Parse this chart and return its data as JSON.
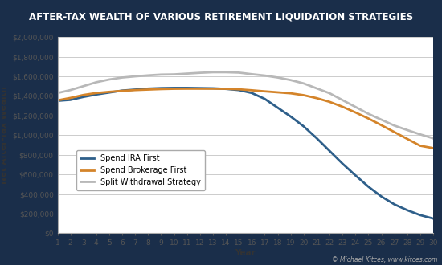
{
  "title": "AFTER-TAX WEALTH OF VARIOUS RETIREMENT LIQUIDATION STRATEGIES",
  "xlabel": "Year",
  "ylabel": "Net After-Tax Wealth",
  "copyright": "© Michael Kitces, www.kitces.com",
  "copyright_link": "www.kitces.com",
  "outer_bg_color": "#1a2e4a",
  "inner_bg_color": "#ffffff",
  "grid_color": "#cccccc",
  "title_color": "#ffffff",
  "years": [
    1,
    2,
    3,
    4,
    5,
    6,
    7,
    8,
    9,
    10,
    11,
    12,
    13,
    14,
    15,
    16,
    17,
    18,
    19,
    20,
    21,
    22,
    23,
    24,
    25,
    26,
    27,
    28,
    29,
    30
  ],
  "ira_first": [
    1350000,
    1360000,
    1390000,
    1415000,
    1435000,
    1455000,
    1465000,
    1475000,
    1480000,
    1482000,
    1482000,
    1480000,
    1478000,
    1472000,
    1460000,
    1430000,
    1370000,
    1280000,
    1190000,
    1090000,
    970000,
    840000,
    710000,
    590000,
    475000,
    375000,
    295000,
    235000,
    185000,
    150000
  ],
  "brokerage_first": [
    1355000,
    1380000,
    1410000,
    1430000,
    1442000,
    1452000,
    1460000,
    1465000,
    1470000,
    1473000,
    1474000,
    1474000,
    1474000,
    1473000,
    1468000,
    1458000,
    1447000,
    1437000,
    1427000,
    1408000,
    1378000,
    1340000,
    1290000,
    1232000,
    1170000,
    1102000,
    1032000,
    962000,
    892000,
    868000
  ],
  "split": [
    1430000,
    1460000,
    1500000,
    1540000,
    1568000,
    1588000,
    1600000,
    1610000,
    1618000,
    1620000,
    1628000,
    1636000,
    1642000,
    1642000,
    1638000,
    1622000,
    1608000,
    1588000,
    1562000,
    1528000,
    1478000,
    1428000,
    1358000,
    1288000,
    1218000,
    1158000,
    1098000,
    1052000,
    1008000,
    968000
  ],
  "ira_color": "#2e5f8a",
  "brokerage_color": "#d4842a",
  "split_color": "#b8b8b8",
  "ylim": [
    0,
    2000000
  ],
  "yticks": [
    0,
    200000,
    400000,
    600000,
    800000,
    1000000,
    1200000,
    1400000,
    1600000,
    1800000,
    2000000
  ],
  "line_width": 2.0,
  "title_fontsize": 8.5,
  "axis_label_fontsize": 7.5,
  "tick_fontsize": 6.5,
  "legend_fontsize": 7.0,
  "ylabel_color": "#333333",
  "tick_color": "#555555",
  "xlabel_color": "#333333"
}
